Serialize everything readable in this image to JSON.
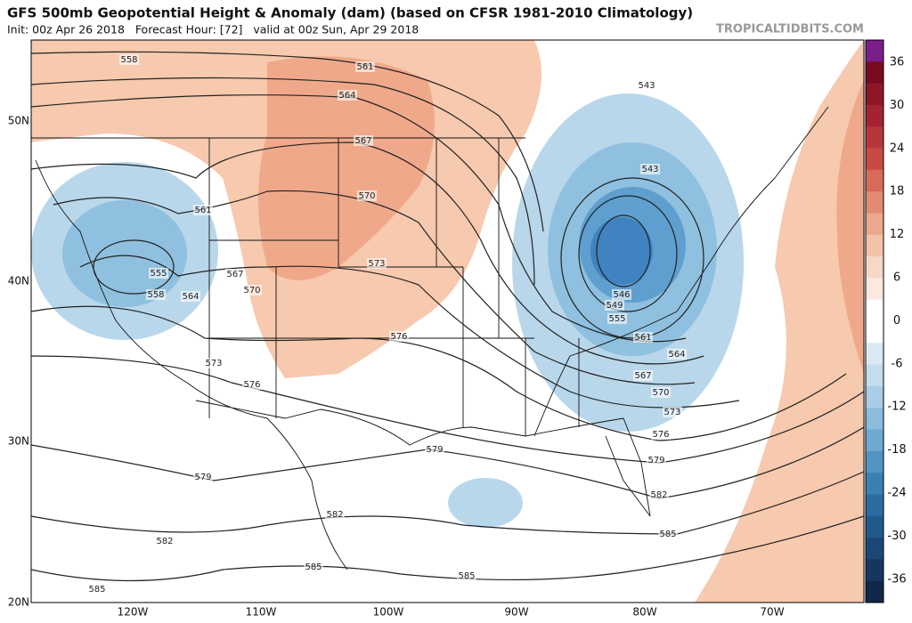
{
  "header": {
    "title": "GFS 500mb Geopotential Height & Anomaly (dam) (based on CFSR 1981-2010 Climatology)",
    "subtitle": "Init: 00z Apr 26 2018   Forecast Hour: [72]   valid at 00z Sun, Apr 29 2018",
    "credit": "TROPICALTIDBITS.COM"
  },
  "axes": {
    "lat_labels": [
      "50N",
      "40N",
      "30N",
      "20N"
    ],
    "lon_labels": [
      "120W",
      "110W",
      "100W",
      "90W",
      "80W",
      "70W"
    ]
  },
  "colorbar": {
    "labels": [
      "36",
      "30",
      "24",
      "18",
      "12",
      "6",
      "0",
      "-6",
      "-12",
      "-18",
      "-24",
      "-30",
      "-36"
    ]
  },
  "contours": {
    "labels": [
      "558",
      "561",
      "564",
      "567",
      "570",
      "573",
      "576",
      "579",
      "582",
      "585",
      "585",
      "585",
      "582",
      "579",
      "576",
      "573",
      "570",
      "567",
      "561",
      "555",
      "558",
      "564",
      "543",
      "543",
      "546",
      "549",
      "555",
      "561",
      "564",
      "567",
      "570",
      "573",
      "576",
      "579",
      "582",
      "585"
    ]
  }
}
